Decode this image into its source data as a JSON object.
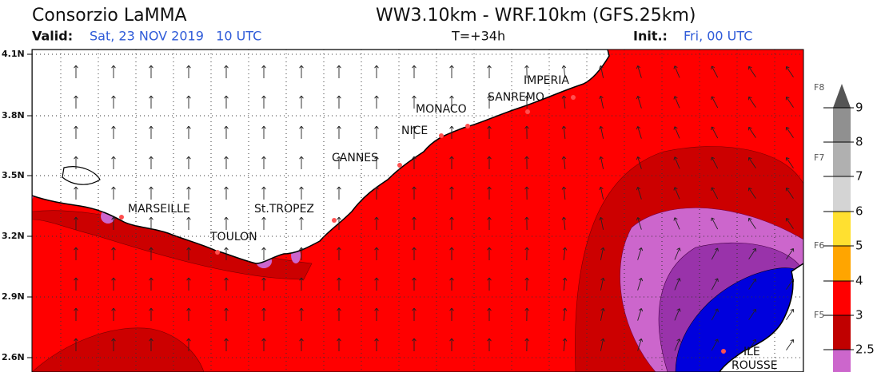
{
  "header": {
    "title": "Consorzio LaMMA",
    "model": "WW3.10km - WRF.10km (GFS.25km)",
    "valid_label": "Valid:",
    "valid_value": "Sat, 23 NOV 2019   10 UTC",
    "forecast": "T=+34h",
    "init_label": "Init.:",
    "init_value": "Fri, 00 UTC"
  },
  "lat_labels": [
    "4.1N",
    "3.8N",
    "3.5N",
    "3.2N",
    "2.9N",
    "2.6N"
  ],
  "places": [
    "MARSEILLE",
    "TOULON",
    "St.TROPEZ",
    "CANNES",
    "NICE",
    "MONACO",
    "SANREMO",
    "IMPERIA",
    "ILE",
    "ROUSSE"
  ],
  "legend": {
    "levels": [
      "9",
      "8",
      "7",
      "6",
      "5",
      "4",
      "3",
      "2.5"
    ],
    "forces": [
      "F8",
      "F7",
      "F6",
      "F5"
    ]
  }
}
